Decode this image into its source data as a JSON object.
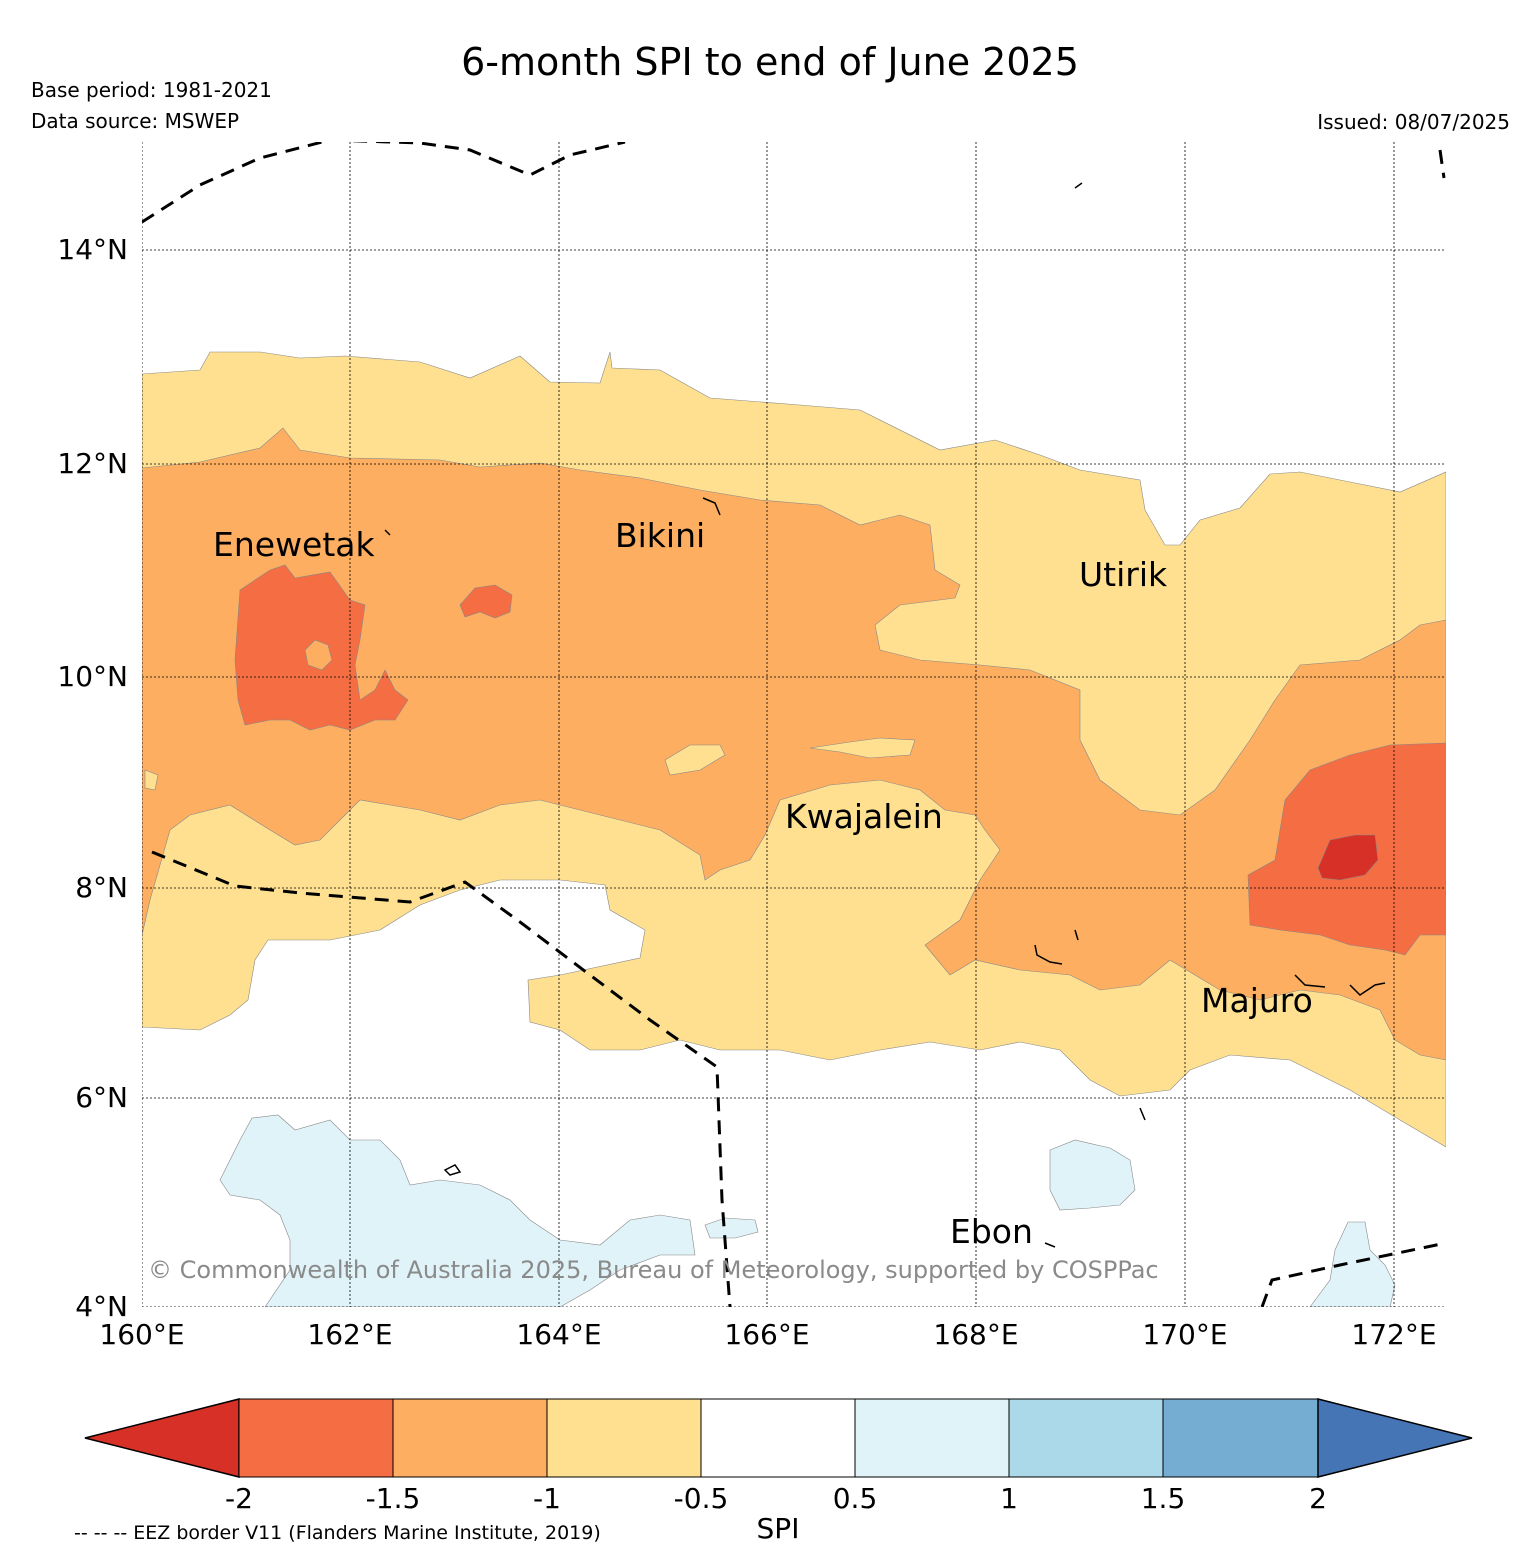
{
  "title": "6-month SPI to end of June 2025",
  "base_period": "Base period: 1981-2021",
  "data_source": "Data source: MSWEP",
  "issued": "Issued: 08/07/2025",
  "copyright": "© Commonwealth of Australia 2025, Bureau of Meteorology, supported by COSPPac",
  "eez_note": "-- -- -- EEZ border V11 (Flanders Marine Institute, 2019)",
  "map": {
    "lon_range": [
      160,
      172.5
    ],
    "lat_range": [
      4,
      15
    ],
    "lat_ticks": [
      {
        "value": 14,
        "label": "14°N"
      },
      {
        "value": 12,
        "label": "12°N"
      },
      {
        "value": 10,
        "label": "10°N"
      },
      {
        "value": 8,
        "label": "8°N"
      },
      {
        "value": 6,
        "label": "6°N"
      },
      {
        "value": 4,
        "label": "4°N"
      }
    ],
    "lon_ticks": [
      {
        "value": 160,
        "label": "160°E"
      },
      {
        "value": 162,
        "label": "162°E"
      },
      {
        "value": 164,
        "label": "164°E"
      },
      {
        "value": 166,
        "label": "166°E"
      },
      {
        "value": 168,
        "label": "168°E"
      },
      {
        "value": 170,
        "label": "170°E"
      },
      {
        "value": 172,
        "label": "172°E"
      }
    ],
    "places": [
      {
        "name": "Enewetak",
        "lon": 162.2,
        "lat": 11.3
      },
      {
        "name": "Bikini",
        "lon": 165.4,
        "lat": 11.5
      },
      {
        "name": "Utirik",
        "lon": 169.8,
        "lat": 11.2
      },
      {
        "name": "Kwajalein",
        "lon": 167.3,
        "lat": 8.7
      },
      {
        "name": "Majuro",
        "lon": 171.1,
        "lat": 7.1
      },
      {
        "name": "Ebon",
        "lon": 168.7,
        "lat": 4.6
      }
    ]
  },
  "colorbar": {
    "label": "SPI",
    "ticks": [
      "-2",
      "-1.5",
      "-1",
      "-0.5",
      "0.5",
      "1",
      "1.5",
      "2"
    ],
    "colors": {
      "below_-2": "#d73027",
      "-2_to_-1.5": "#f46d43",
      "-1.5_to_-1": "#fdae61",
      "-1_to_-0.5": "#fee090",
      "-0.5_to_0.5": "#ffffff",
      "0.5_to_1": "#e0f3f8",
      "1_to_1.5": "#abd9e9",
      "1.5_to_2": "#74add1",
      "above_2": "#4575b4"
    }
  }
}
